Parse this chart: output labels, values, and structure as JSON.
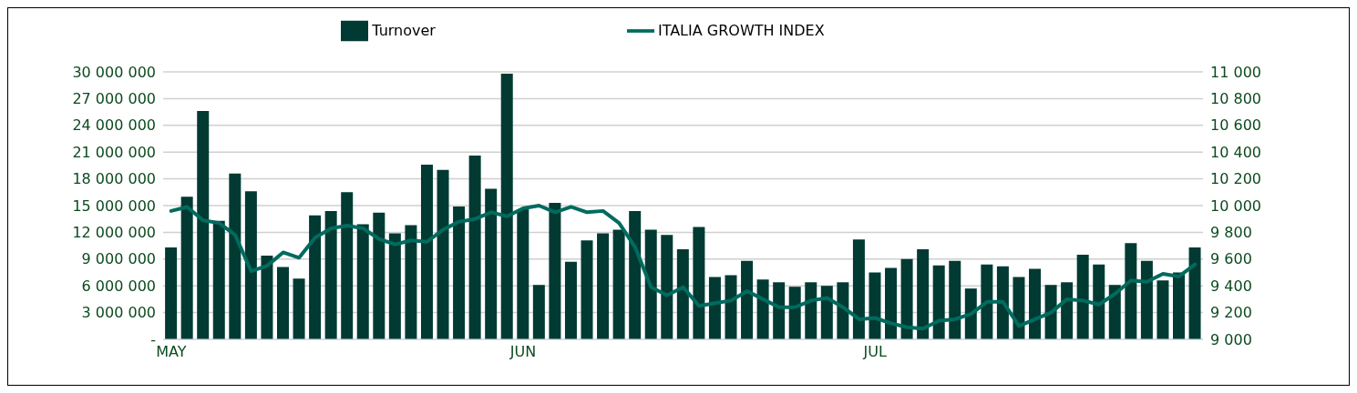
{
  "chart_data": {
    "type": "bar",
    "categories": [
      "MAY",
      null,
      null,
      null,
      null,
      null,
      null,
      null,
      null,
      null,
      null,
      null,
      null,
      null,
      null,
      null,
      null,
      null,
      null,
      null,
      null,
      null,
      "JUN",
      null,
      null,
      null,
      null,
      null,
      null,
      null,
      null,
      null,
      null,
      null,
      null,
      null,
      null,
      null,
      null,
      null,
      null,
      null,
      null,
      null,
      "JUL",
      null,
      null,
      null,
      null,
      null,
      null,
      null,
      null,
      null,
      null,
      null,
      null,
      null,
      null,
      null,
      null,
      null,
      null,
      null,
      null
    ],
    "series": [
      {
        "name": "Turnover",
        "color": "#003a32",
        "values": [
          10300000,
          16000000,
          25600000,
          13300000,
          18600000,
          16600000,
          9400000,
          8100000,
          6800000,
          13900000,
          14400000,
          16500000,
          12900000,
          14200000,
          11900000,
          12800000,
          19600000,
          19000000,
          14900000,
          20600000,
          16900000,
          29800000,
          14600000,
          6100000,
          15300000,
          8700000,
          11100000,
          11900000,
          12300000,
          14400000,
          12300000,
          11700000,
          10100000,
          12600000,
          7000000,
          7200000,
          8800000,
          6700000,
          6400000,
          5900000,
          6400000,
          6000000,
          6400000,
          11200000,
          7500000,
          8000000,
          9000000,
          10100000,
          8300000,
          8800000,
          5700000,
          8400000,
          8200000,
          7000000,
          7900000,
          6100000,
          6400000,
          9500000,
          8400000,
          6100000,
          10800000,
          8800000,
          6600000,
          7500000,
          10300000
        ]
      },
      {
        "name": "ITALIA GROWTH INDEX",
        "type": "line",
        "axis": "y2",
        "color": "#006b5e",
        "values": [
          9960,
          9990,
          9890,
          9870,
          9780,
          9510,
          9550,
          9650,
          9610,
          9760,
          9830,
          9850,
          9830,
          9750,
          9710,
          9740,
          9730,
          9820,
          9880,
          9900,
          9950,
          9920,
          9980,
          10000,
          9950,
          9990,
          9950,
          9960,
          9870,
          9690,
          9390,
          9330,
          9390,
          9250,
          9270,
          9290,
          9360,
          9300,
          9240,
          9240,
          9290,
          9310,
          9240,
          9150,
          9160,
          9120,
          9090,
          9080,
          9140,
          9150,
          9190,
          9280,
          9280,
          9100,
          9150,
          9200,
          9300,
          9290,
          9260,
          9340,
          9440,
          9430,
          9490,
          9470,
          9560
        ]
      }
    ],
    "ylim": [
      0,
      30000000
    ],
    "yticks": [
      {
        "value": 0,
        "label": "-"
      },
      {
        "value": 3000000,
        "label": "3 000 000"
      },
      {
        "value": 6000000,
        "label": "6 000 000"
      },
      {
        "value": 9000000,
        "label": "9 000 000"
      },
      {
        "value": 12000000,
        "label": "12 000 000"
      },
      {
        "value": 15000000,
        "label": "15 000 000"
      },
      {
        "value": 18000000,
        "label": "18 000 000"
      },
      {
        "value": 21000000,
        "label": "21 000 000"
      },
      {
        "value": 24000000,
        "label": "24 000 000"
      },
      {
        "value": 27000000,
        "label": "27 000 000"
      },
      {
        "value": 30000000,
        "label": "30 000 000"
      }
    ],
    "y2lim": [
      9000,
      11000
    ],
    "y2ticks": [
      {
        "value": 9000,
        "label": "9 000"
      },
      {
        "value": 9200,
        "label": "9 200"
      },
      {
        "value": 9400,
        "label": "9 400"
      },
      {
        "value": 9600,
        "label": "9 600"
      },
      {
        "value": 9800,
        "label": "9 800"
      },
      {
        "value": 10000,
        "label": "10 000"
      },
      {
        "value": 10200,
        "label": "10 200"
      },
      {
        "value": 10400,
        "label": "10 400"
      },
      {
        "value": 10600,
        "label": "10 600"
      },
      {
        "value": 10800,
        "label": "10 800"
      },
      {
        "value": 11000,
        "label": "11 000"
      }
    ],
    "grid": "y",
    "legend": "top",
    "marker": "none",
    "line_style": "solid"
  }
}
